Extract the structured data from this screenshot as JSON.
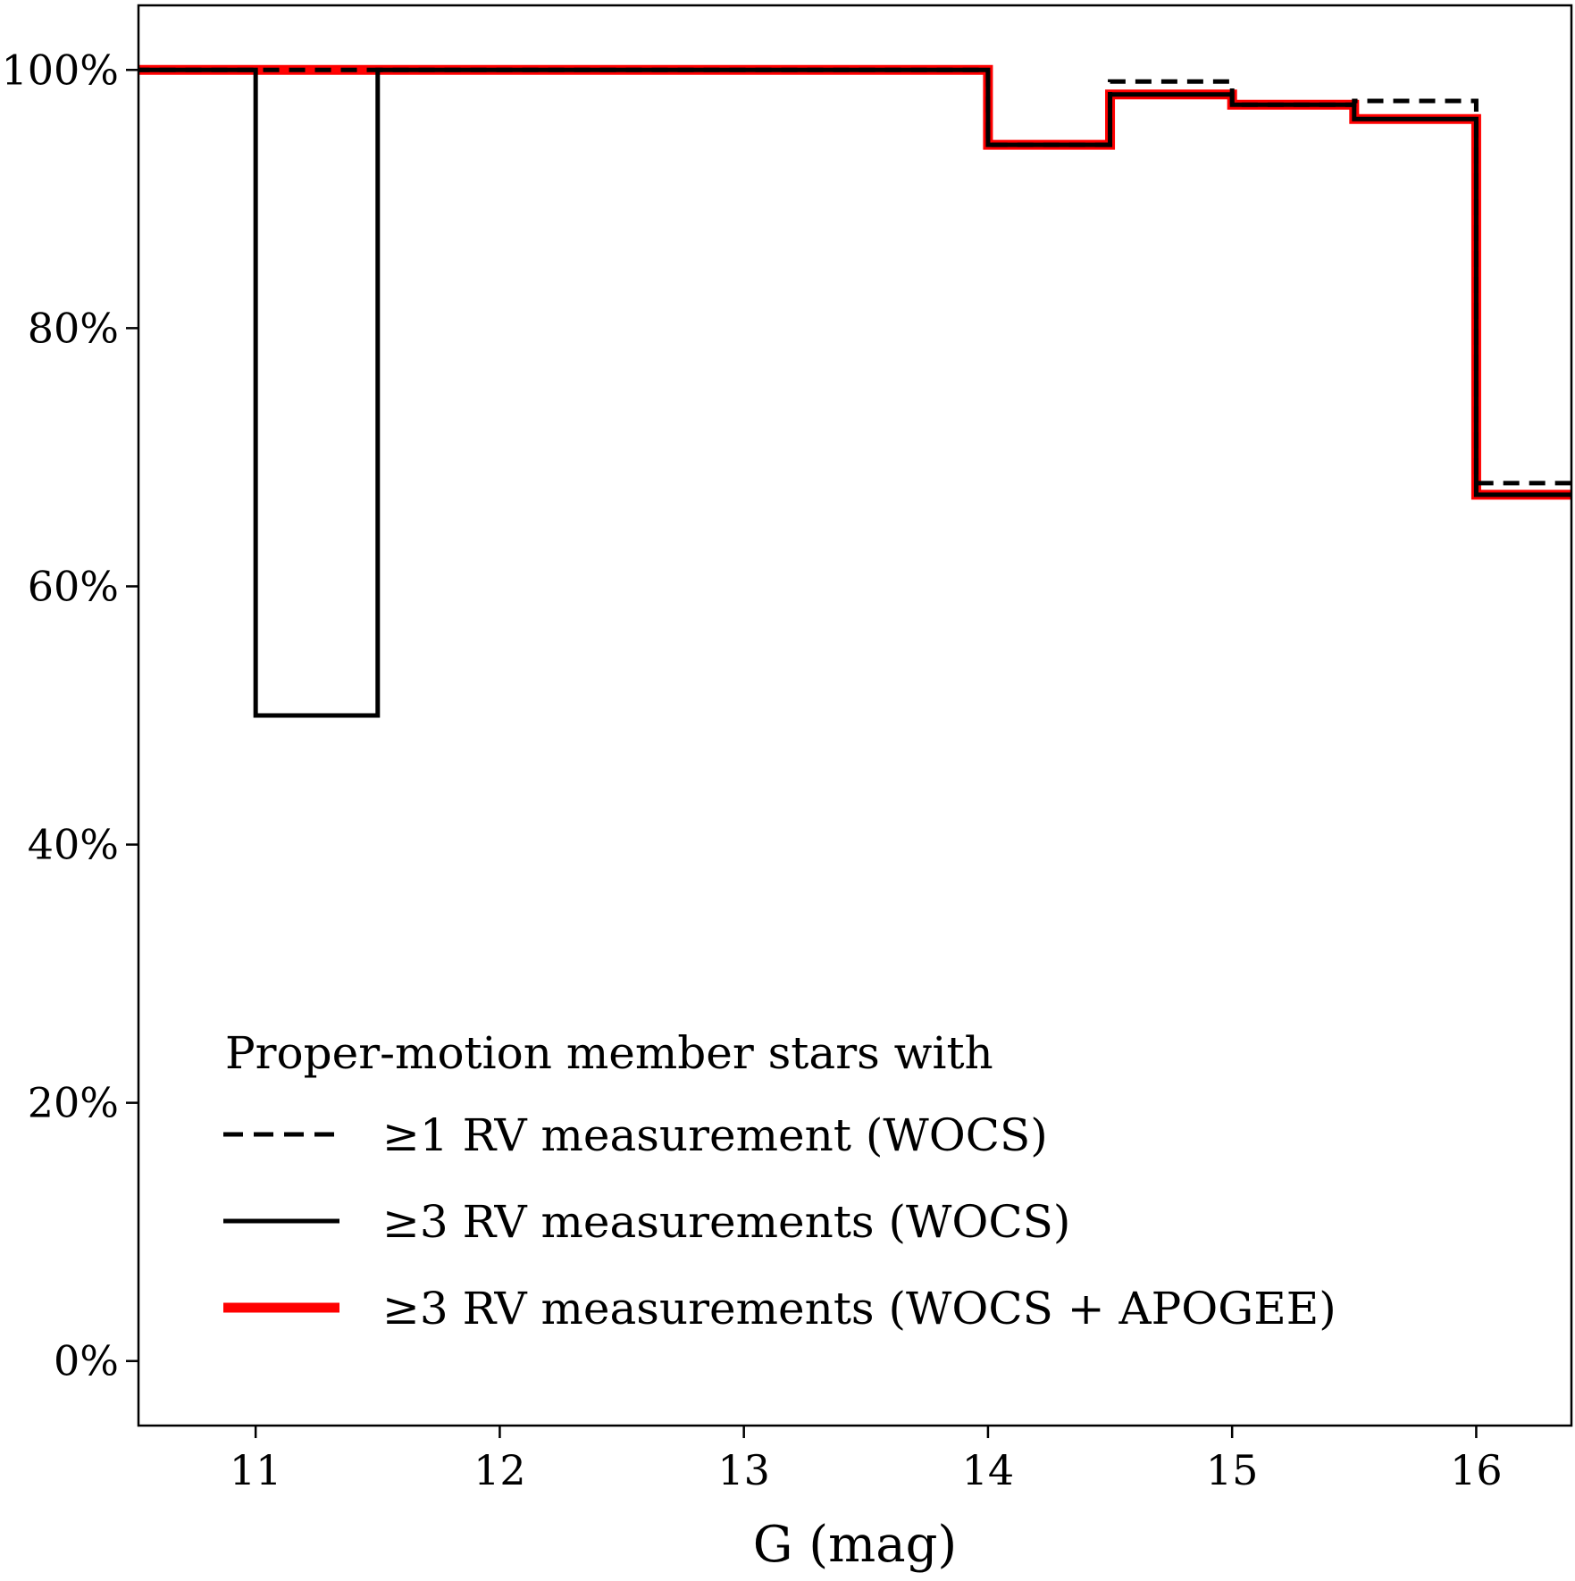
{
  "chart_data": {
    "type": "line",
    "step": "post",
    "xlabel": "G (mag)",
    "ylabel": "",
    "xlim": [
      10.52,
      16.39
    ],
    "ylim": [
      -5,
      105
    ],
    "x_ticks": [
      11,
      12,
      13,
      14,
      15,
      16
    ],
    "x_tick_labels": [
      "11",
      "12",
      "13",
      "14",
      "15",
      "16"
    ],
    "y_ticks": [
      0,
      20,
      40,
      60,
      80,
      100
    ],
    "y_tick_labels": [
      "0%",
      "20%",
      "40%",
      "60%",
      "80%",
      "100%"
    ],
    "grid": false,
    "legend": {
      "placement": "lower-left",
      "title": "Proper-motion member stars with"
    },
    "bin_edges": [
      10.5,
      11.0,
      11.5,
      12.0,
      12.5,
      13.0,
      13.5,
      14.0,
      14.5,
      15.0,
      15.5,
      16.0,
      16.5
    ],
    "series": [
      {
        "name": "≥3 RV measurements (WOCS + APOGEE)",
        "color": "#ff0000",
        "style": "solid-thick",
        "values": [
          100,
          100,
          100,
          100,
          100,
          100,
          100,
          94.2,
          98.1,
          97.3,
          96.2,
          67.1
        ]
      },
      {
        "name": "≥1 RV measurement (WOCS)",
        "color": "#000000",
        "style": "dashed",
        "values": [
          100,
          100,
          100,
          100,
          100,
          100,
          100,
          94.2,
          99.1,
          97.3,
          97.6,
          68.0
        ]
      },
      {
        "name": "≥3 RV measurements (WOCS)",
        "color": "#000000",
        "style": "solid",
        "values": [
          100,
          50,
          100,
          100,
          100,
          100,
          100,
          94.2,
          98.1,
          97.3,
          96.2,
          67.1
        ]
      }
    ]
  }
}
